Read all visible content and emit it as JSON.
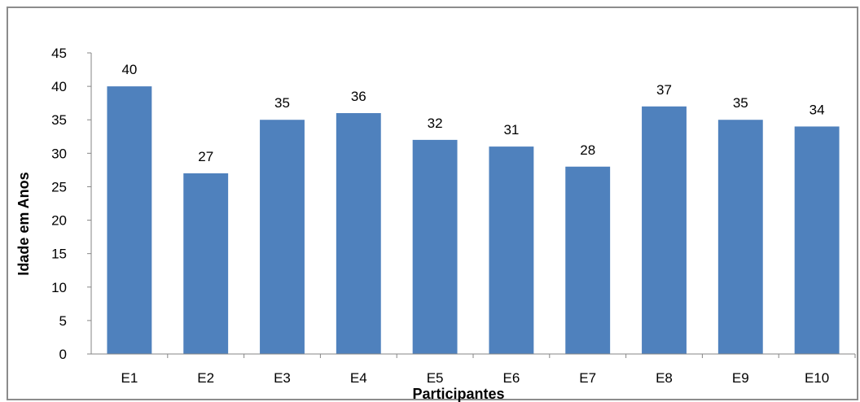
{
  "chart_data": {
    "type": "bar",
    "categories": [
      "E1",
      "E2",
      "E3",
      "E4",
      "E5",
      "E6",
      "E7",
      "E8",
      "E9",
      "E10"
    ],
    "values": [
      40,
      27,
      35,
      36,
      32,
      31,
      28,
      37,
      35,
      34
    ],
    "xlabel": "Participantes",
    "ylabel": "Idade em Anos",
    "ylim": [
      0,
      45
    ],
    "yticks": [
      0,
      5,
      10,
      15,
      20,
      25,
      30,
      35,
      40,
      45
    ],
    "bar_color": "#4f81bd",
    "grid": false,
    "legend": "none",
    "data_labels": true
  }
}
